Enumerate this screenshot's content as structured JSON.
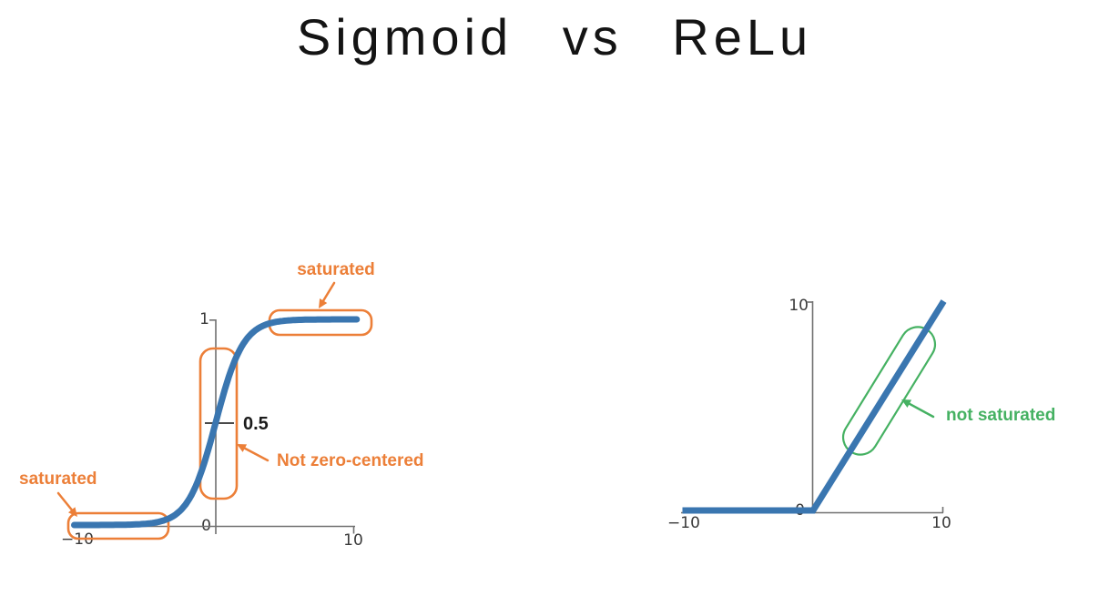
{
  "title": "Sigmoid vs ReLu",
  "colors": {
    "curve_blue": "#3A76B0",
    "annotation_orange": "#EC7F38",
    "annotation_green": "#45B162",
    "axis_gray": "#707070",
    "tick_label": "#3A3A3A",
    "value_label": "#1B1B1B",
    "title_color": "#141414"
  },
  "chart_data": [
    {
      "type": "line",
      "name": "Sigmoid",
      "function": "sigmoid",
      "formula": "y = 1 / (1 + exp(-x))",
      "x_range": [
        -10,
        10
      ],
      "y_range": [
        0,
        1
      ],
      "x_ticks": [
        -10,
        0,
        10
      ],
      "y_ticks": [
        0,
        0.5,
        1
      ],
      "grid": false,
      "legend": false,
      "series": [
        {
          "name": "sigmoid(x)",
          "x": [
            -10,
            -8,
            -6,
            -5,
            -4,
            -3,
            -2.5,
            -2,
            -1.5,
            -1,
            -0.5,
            0,
            0.5,
            1,
            1.5,
            2,
            2.5,
            3,
            4,
            5,
            6,
            8,
            10
          ],
          "y": [
            0.0,
            0.0003,
            0.0025,
            0.0067,
            0.018,
            0.0474,
            0.0759,
            0.1192,
            0.1824,
            0.2689,
            0.3775,
            0.5,
            0.6225,
            0.7311,
            0.8176,
            0.8808,
            0.9241,
            0.9526,
            0.982,
            0.9933,
            0.9975,
            0.9997,
            1.0
          ]
        }
      ],
      "key_point": {
        "x": 0,
        "y": 0.5,
        "label": "0.5"
      },
      "annotations": [
        "saturated",
        "saturated",
        "Not zero-centered"
      ]
    },
    {
      "type": "line",
      "name": "ReLu",
      "function": "relu",
      "formula": "y = max(0, x)",
      "x_range": [
        -10,
        10
      ],
      "y_range": [
        0,
        10
      ],
      "x_ticks": [
        -10,
        0,
        10
      ],
      "y_ticks": [
        10
      ],
      "grid": false,
      "legend": false,
      "series": [
        {
          "name": "relu(x)",
          "x": [
            -10,
            0,
            10
          ],
          "y": [
            0,
            0,
            10
          ]
        }
      ],
      "annotations": [
        "not saturated"
      ]
    }
  ],
  "left_chart": {
    "y_tick_top": "1",
    "mid_value": "0.5",
    "origin_label": "0",
    "x_tick_left": "−10",
    "x_tick_right": "10",
    "ann_saturated_top": "saturated",
    "ann_saturated_bottom": "saturated",
    "ann_not_zero_centered": "Not zero-centered"
  },
  "right_chart": {
    "y_tick_top": "10",
    "origin_label": "0",
    "x_tick_left": "−10",
    "x_tick_right": "10",
    "ann_not_saturated": "not saturated"
  }
}
